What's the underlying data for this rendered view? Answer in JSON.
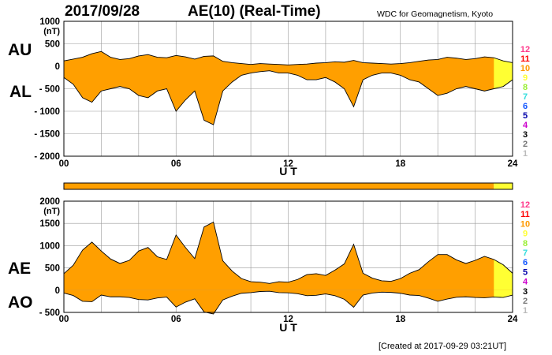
{
  "header": {
    "date": "2017/09/28",
    "title": "AE(10) (Real-Time)",
    "source": "WDC for Geomagnetism, Kyoto"
  },
  "footer": {
    "created": "[Created at 2017-09-29 03:21UT]"
  },
  "colors": {
    "fill_main": "#ff9f00",
    "fill_latest": "#ffff33",
    "grid": "#9a9a9a",
    "line": "#000000"
  },
  "station_legend": [
    {
      "label": "12",
      "color": "#ff3a8c"
    },
    {
      "label": "11",
      "color": "#ff0000"
    },
    {
      "label": "10",
      "color": "#ff9900"
    },
    {
      "label": "9",
      "color": "#ffff33"
    },
    {
      "label": "8",
      "color": "#99ee33"
    },
    {
      "label": "7",
      "color": "#33dddd"
    },
    {
      "label": "6",
      "color": "#1155ff"
    },
    {
      "label": "5",
      "color": "#0000aa"
    },
    {
      "label": "4",
      "color": "#cc00cc"
    },
    {
      "label": "3",
      "color": "#000000"
    },
    {
      "label": "2",
      "color": "#777777"
    },
    {
      "label": "1",
      "color": "#bbbbbb"
    }
  ],
  "station_bar": {
    "segments": [
      {
        "from": 0,
        "to": 23,
        "label": "10",
        "color": "#ff9f00"
      },
      {
        "from": 23,
        "to": 24,
        "label": "9",
        "color": "#ffff33"
      }
    ]
  },
  "chart_data": [
    {
      "type": "area",
      "panel": "AU/AL",
      "upper_label": "AU",
      "lower_label": "AL",
      "y_unit": "(nT)",
      "xlabel": "U T",
      "xlim": [
        0,
        24
      ],
      "ylim": [
        -2000,
        1000
      ],
      "yticks": [
        1000,
        500,
        0,
        -500,
        -1000,
        -1500,
        -2000
      ],
      "ytick_labels": [
        "1000",
        "500",
        "0",
        "- 500",
        "- 1000",
        "- 1500",
        "- 2000"
      ],
      "xticks": [
        0,
        6,
        12,
        18,
        24
      ],
      "xtick_labels": [
        "00",
        "06",
        "12",
        "18",
        "24"
      ],
      "grid": true,
      "stations_change_hour": 23,
      "series": [
        {
          "name": "AU",
          "x": [
            0,
            0.5,
            1,
            1.5,
            2,
            2.5,
            3,
            3.5,
            4,
            4.5,
            5,
            5.5,
            6,
            6.5,
            7,
            7.5,
            8,
            8.5,
            9,
            9.5,
            10,
            10.5,
            11,
            11.5,
            12,
            12.5,
            13,
            13.5,
            14,
            14.5,
            15,
            15.5,
            16,
            16.5,
            17,
            17.5,
            18,
            18.5,
            19,
            19.5,
            20,
            20.5,
            21,
            21.5,
            22,
            22.5,
            23,
            23.5,
            24
          ],
          "values": [
            120,
            160,
            200,
            280,
            330,
            200,
            150,
            170,
            230,
            260,
            200,
            190,
            240,
            210,
            160,
            220,
            230,
            110,
            80,
            60,
            40,
            60,
            50,
            40,
            30,
            40,
            50,
            70,
            80,
            100,
            90,
            130,
            80,
            70,
            60,
            50,
            60,
            80,
            110,
            140,
            150,
            200,
            180,
            150,
            170,
            210,
            190,
            120,
            80
          ]
        },
        {
          "name": "AL",
          "x": [
            0,
            0.5,
            1,
            1.5,
            2,
            2.5,
            3,
            3.5,
            4,
            4.5,
            5,
            5.5,
            6,
            6.5,
            7,
            7.5,
            8,
            8.5,
            9,
            9.5,
            10,
            10.5,
            11,
            11.5,
            12,
            12.5,
            13,
            13.5,
            14,
            14.5,
            15,
            15.5,
            16,
            16.5,
            17,
            17.5,
            18,
            18.5,
            19,
            19.5,
            20,
            20.5,
            21,
            21.5,
            22,
            22.5,
            23,
            23.5,
            24
          ],
          "values": [
            -250,
            -400,
            -700,
            -800,
            -550,
            -500,
            -450,
            -500,
            -650,
            -700,
            -550,
            -500,
            -1000,
            -750,
            -550,
            -1200,
            -1300,
            -550,
            -350,
            -200,
            -150,
            -120,
            -100,
            -150,
            -150,
            -200,
            -300,
            -300,
            -250,
            -350,
            -500,
            -900,
            -300,
            -200,
            -150,
            -150,
            -200,
            -300,
            -350,
            -500,
            -650,
            -600,
            -500,
            -450,
            -500,
            -550,
            -500,
            -450,
            -300
          ]
        }
      ]
    },
    {
      "type": "area",
      "panel": "AE/AO",
      "upper_label": "AE",
      "lower_label": "AO",
      "y_unit": "(nT)",
      "xlabel": "U T",
      "xlim": [
        0,
        24
      ],
      "ylim": [
        -500,
        2000
      ],
      "yticks": [
        2000,
        1500,
        1000,
        500,
        0,
        -500
      ],
      "ytick_labels": [
        "2000",
        "1500",
        "1000",
        "500",
        "0",
        "- 500"
      ],
      "xticks": [
        0,
        6,
        12,
        18,
        24
      ],
      "xtick_labels": [
        "00",
        "06",
        "12",
        "18",
        "24"
      ],
      "grid": true,
      "stations_change_hour": 23,
      "series": [
        {
          "name": "AE",
          "x": [
            0,
            0.5,
            1,
            1.5,
            2,
            2.5,
            3,
            3.5,
            4,
            4.5,
            5,
            5.5,
            6,
            6.5,
            7,
            7.5,
            8,
            8.5,
            9,
            9.5,
            10,
            10.5,
            11,
            11.5,
            12,
            12.5,
            13,
            13.5,
            14,
            14.5,
            15,
            15.5,
            16,
            16.5,
            17,
            17.5,
            18,
            18.5,
            19,
            19.5,
            20,
            20.5,
            21,
            21.5,
            22,
            22.5,
            23,
            23.5,
            24
          ],
          "values": [
            370,
            560,
            900,
            1080,
            880,
            700,
            600,
            670,
            880,
            960,
            750,
            690,
            1240,
            960,
            710,
            1420,
            1530,
            660,
            430,
            260,
            190,
            180,
            150,
            190,
            180,
            240,
            350,
            370,
            330,
            450,
            590,
            1030,
            380,
            270,
            210,
            200,
            260,
            380,
            460,
            640,
            800,
            800,
            680,
            600,
            670,
            760,
            690,
            570,
            380
          ]
        },
        {
          "name": "AO",
          "x": [
            0,
            0.5,
            1,
            1.5,
            2,
            2.5,
            3,
            3.5,
            4,
            4.5,
            5,
            5.5,
            6,
            6.5,
            7,
            7.5,
            8,
            8.5,
            9,
            9.5,
            10,
            10.5,
            11,
            11.5,
            12,
            12.5,
            13,
            13.5,
            14,
            14.5,
            15,
            15.5,
            16,
            16.5,
            17,
            17.5,
            18,
            18.5,
            19,
            19.5,
            20,
            20.5,
            21,
            21.5,
            22,
            22.5,
            23,
            23.5,
            24
          ],
          "values": [
            -65,
            -120,
            -250,
            -260,
            -110,
            -150,
            -150,
            -165,
            -210,
            -220,
            -175,
            -155,
            -380,
            -270,
            -195,
            -490,
            -535,
            -220,
            -135,
            -70,
            -55,
            -30,
            -25,
            -55,
            -60,
            -80,
            -125,
            -115,
            -85,
            -125,
            -205,
            -385,
            -110,
            -65,
            -45,
            -50,
            -70,
            -110,
            -120,
            -180,
            -250,
            -200,
            -160,
            -150,
            -165,
            -170,
            -155,
            -165,
            -110
          ]
        }
      ]
    }
  ]
}
